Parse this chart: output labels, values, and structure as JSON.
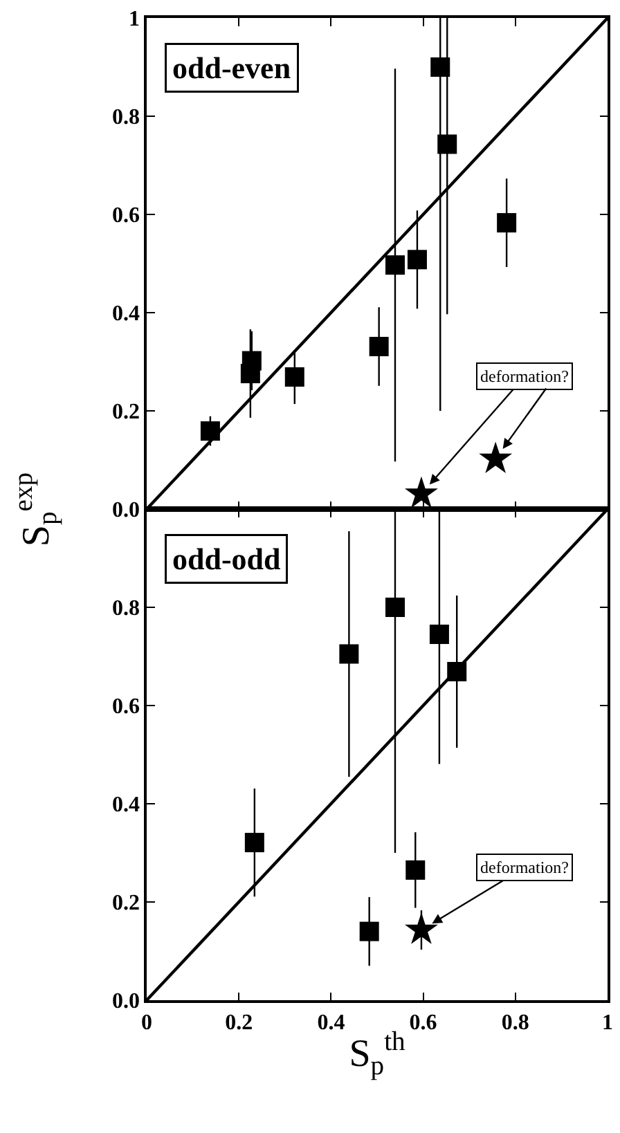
{
  "chart_data": [
    {
      "type": "scatter",
      "title": "odd-even",
      "ylabel": "S$_{p}$$^{exp}$",
      "xlim": [
        0,
        1
      ],
      "xticks": [
        0,
        0.2,
        0.4,
        0.6,
        0.8,
        1
      ],
      "ylim": [
        0,
        1
      ],
      "yticks": [
        {
          "value": 0,
          "label": "0.0"
        },
        0.2,
        0.4,
        0.6,
        0.8,
        1
      ],
      "tick_labels": "y",
      "annotations": [
        {
          "text": "deformation?",
          "x": 0.596,
          "y": 0.031
        }
      ],
      "series": [
        {
          "type": "scatter",
          "marker": "square",
          "color": "#000000",
          "x": [
            0.138,
            0.225,
            0.228,
            0.321,
            0.504,
            0.539,
            0.587,
            0.637,
            0.652,
            0.781
          ],
          "values": [
            0.159,
            0.276,
            0.302,
            0.269,
            0.331,
            0.497,
            0.508,
            0.9,
            0.743,
            0.583
          ],
          "errors": [
            0.03,
            0.09,
            0.06,
            0.055,
            0.08,
            0.4,
            0.1,
            [
              0.2,
              1
            ],
            [
              0.397,
              1
            ],
            0.09
          ]
        },
        {
          "type": "scatter",
          "marker": "star",
          "color": "#000000",
          "x": [
            0.596,
            0.757
          ],
          "values": [
            0.031,
            0.102
          ]
        },
        {
          "type": "line",
          "line_style": "solid",
          "color": "#000000",
          "x": [
            0,
            1
          ],
          "values": [
            0,
            1
          ]
        }
      ]
    },
    {
      "type": "scatter",
      "title": "odd-odd",
      "xlabel": "S$_{p}$$^{th}$",
      "xlim": [
        0,
        1
      ],
      "xticks": [
        0,
        0.2,
        0.4,
        0.6,
        0.8,
        1
      ],
      "ylim": [
        0,
        1
      ],
      "yticks": [
        {
          "value": 0,
          "label": "0.0"
        },
        0.2,
        0.4,
        0.6,
        0.8
      ],
      "annotations": [
        {
          "text": "deformation?",
          "x": 0.596,
          "y": 0.143
        }
      ],
      "series": [
        {
          "type": "scatter",
          "marker": "square",
          "color": "#000000",
          "x": [
            0.234,
            0.439,
            0.539,
            0.635,
            0.673,
            0.583,
            0.483
          ],
          "values": [
            0.321,
            0.705,
            0.8,
            0.745,
            0.669,
            0.265,
            0.14
          ],
          "errors": [
            0.11,
            0.25,
            [
              0.3,
              1
            ],
            [
              0.481,
              1
            ],
            0.155,
            0.077,
            0.07
          ]
        },
        {
          "type": "scatter",
          "marker": "star",
          "color": "#000000",
          "x": [
            0.596
          ],
          "values": [
            0.143
          ],
          "errors": [
            0.04
          ]
        },
        {
          "type": "line",
          "line_style": "solid",
          "color": "#000000",
          "x": [
            0,
            1
          ],
          "values": [
            0,
            1
          ]
        }
      ]
    }
  ]
}
